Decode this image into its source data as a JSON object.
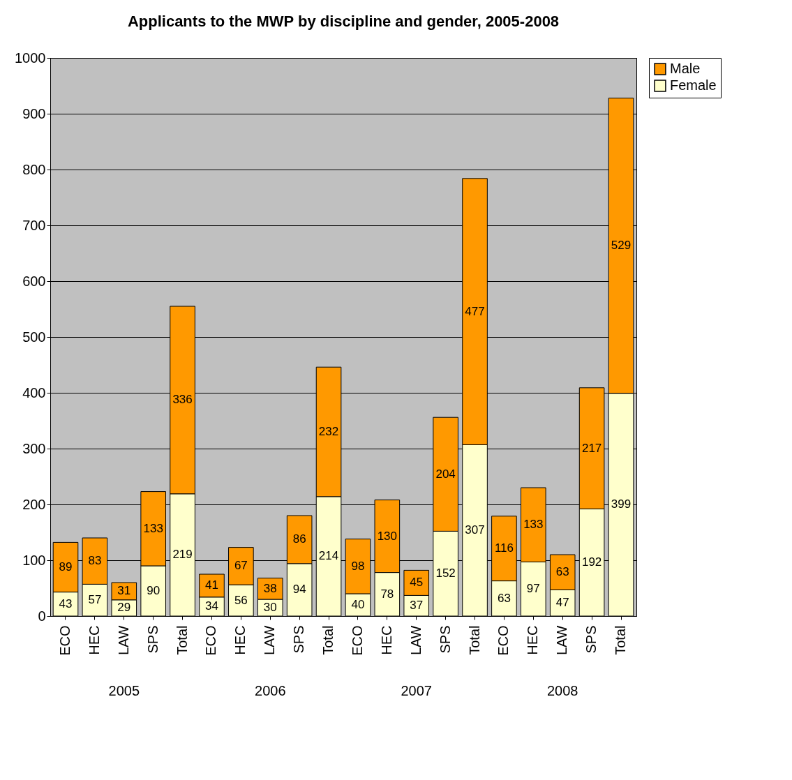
{
  "chart_data": {
    "type": "bar",
    "title": "Applicants to the MWP by discipline and gender, 2005-2008",
    "categories": [
      "ECO",
      "HEC",
      "LAW",
      "SPS",
      "Total",
      "ECO",
      "HEC",
      "LAW",
      "SPS",
      "Total",
      "ECO",
      "HEC",
      "LAW",
      "SPS",
      "Total",
      "ECO",
      "HEC",
      "LAW",
      "SPS",
      "Total"
    ],
    "series": [
      {
        "name": "Female",
        "color": "#ffffcc",
        "values": [
          43,
          57,
          29,
          90,
          219,
          34,
          56,
          30,
          94,
          214,
          40,
          78,
          37,
          152,
          307,
          63,
          97,
          47,
          192,
          399
        ]
      },
      {
        "name": "Male",
        "color": "#ff9900",
        "values": [
          89,
          83,
          31,
          133,
          336,
          41,
          67,
          38,
          86,
          232,
          98,
          130,
          45,
          204,
          477,
          116,
          133,
          63,
          217,
          529
        ]
      }
    ],
    "stacked": true,
    "data_labels": true,
    "ylim": [
      0,
      1000
    ],
    "yticks": [
      0,
      100,
      200,
      300,
      400,
      500,
      600,
      700,
      800,
      900,
      1000
    ],
    "grid": "y",
    "legend": "right",
    "annotations": [
      "2005",
      "2006",
      "2007",
      "2008"
    ]
  }
}
